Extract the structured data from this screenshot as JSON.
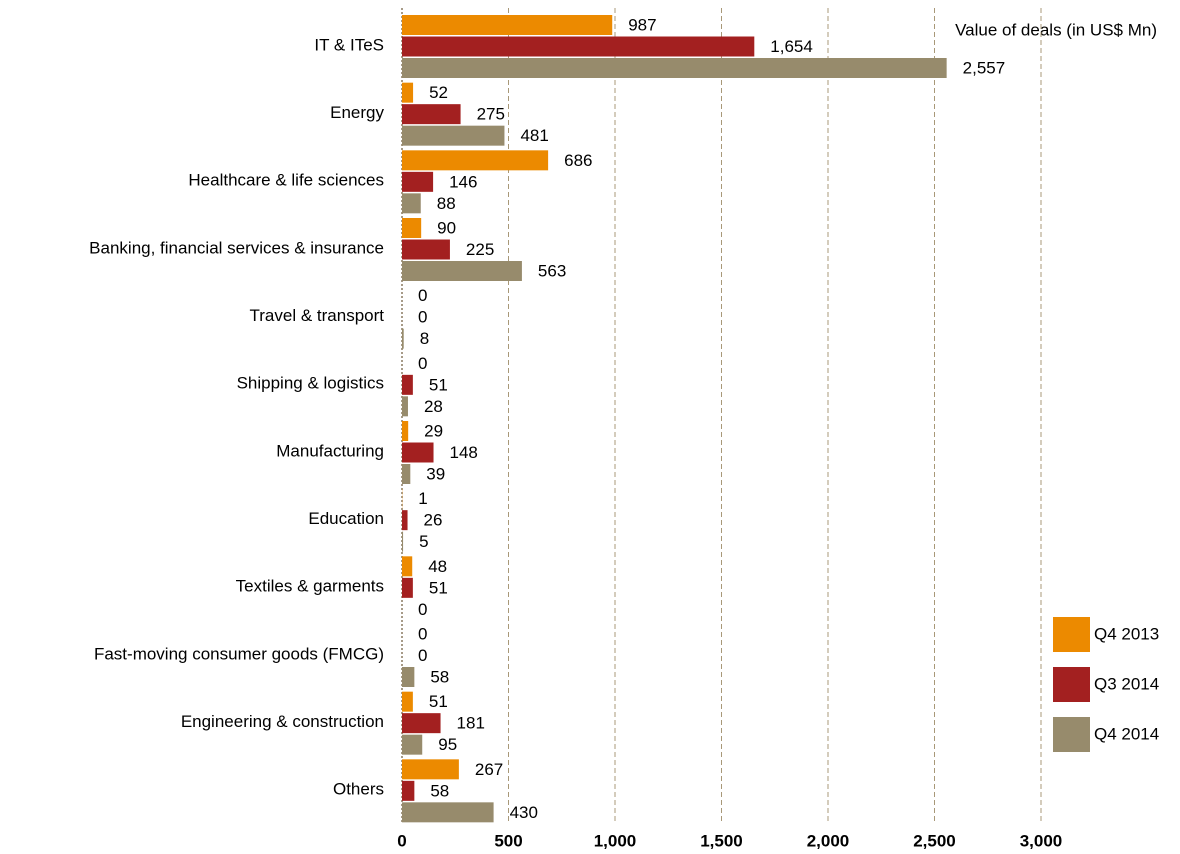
{
  "chart_data": {
    "type": "bar",
    "orientation": "horizontal",
    "annotation": "Value of deals (in US$ Mn)",
    "categories": [
      "IT & ITeS",
      "Energy",
      "Healthcare & life sciences",
      "Banking, financial services & insurance",
      "Travel & transport",
      "Shipping & logistics",
      "Manufacturing",
      "Education",
      "Textiles & garments",
      "Fast-moving consumer goods (FMCG)",
      "Engineering & construction",
      "Others"
    ],
    "series": [
      {
        "name": "Q4 2013",
        "color": "#ec8a00",
        "values": [
          987,
          52,
          686,
          90,
          0,
          0,
          29,
          1,
          48,
          0,
          51,
          267
        ]
      },
      {
        "name": "Q3 2014",
        "color": "#a32020",
        "values": [
          1654,
          275,
          146,
          225,
          0,
          51,
          148,
          26,
          51,
          0,
          181,
          58
        ],
        "value_labels": [
          "1,654",
          "275",
          "146",
          "225",
          "0",
          "51",
          "148",
          "26",
          "51",
          "0",
          "181",
          "58"
        ]
      },
      {
        "name": "Q4 2014",
        "color": "#978b6c",
        "values": [
          2557,
          481,
          88,
          563,
          8,
          28,
          39,
          5,
          0,
          58,
          95,
          430
        ],
        "value_labels": [
          "2,557",
          "481",
          "88",
          "563",
          "8",
          "28",
          "39",
          "5",
          "0",
          "58",
          "95",
          "430"
        ]
      }
    ],
    "xlim": [
      0,
      3000
    ],
    "xticks": [
      0,
      500,
      {
        "value": 1000,
        "label": "1,000"
      },
      {
        "value": 1500,
        "label": "1,500"
      },
      {
        "value": 2000,
        "label": "2,000"
      },
      {
        "value": 2500,
        "label": "2,500"
      },
      {
        "value": 3000,
        "label": "3,000"
      }
    ],
    "grid": true,
    "legend": "lower right"
  }
}
